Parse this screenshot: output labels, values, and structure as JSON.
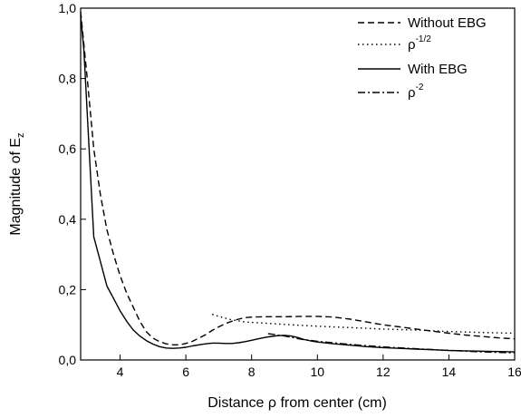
{
  "chart_data": {
    "type": "line",
    "title": "",
    "xlabel": "Distance ρ from center (cm)",
    "ylabel_main": "Magnitude of E",
    "ylabel_sub": "z",
    "xlim": [
      2.8,
      16
    ],
    "ylim": [
      0,
      1.0
    ],
    "xticks": [
      4,
      6,
      8,
      10,
      12,
      14,
      16
    ],
    "xtick_labels": [
      "4",
      "6",
      "8",
      "10",
      "12",
      "14",
      "16"
    ],
    "yticks": [
      0,
      0.2,
      0.4,
      0.6,
      0.8,
      1.0
    ],
    "ytick_labels": [
      "0,0",
      "0,2",
      "0,4",
      "0,6",
      "0,8",
      "1,0"
    ],
    "grid": false,
    "legend_position": "top-right",
    "series": [
      {
        "name": "Without EBG",
        "label_main": "Without EBG",
        "label_sup": "",
        "dash": "dashed",
        "x": [
          2.8,
          3.0,
          3.2,
          3.4,
          3.6,
          3.8,
          4.0,
          4.2,
          4.4,
          4.6,
          4.8,
          5.0,
          5.2,
          5.4,
          5.6,
          5.8,
          6.0,
          6.2,
          6.4,
          6.6,
          6.8,
          7.0,
          7.2,
          7.4,
          7.6,
          7.8,
          8.0,
          8.5,
          9.0,
          9.5,
          10.0,
          10.5,
          11.0,
          11.5,
          12.0,
          12.5,
          13.0,
          13.5,
          14.0,
          14.5,
          15.0,
          15.5,
          16.0
        ],
        "y": [
          0.99,
          0.8,
          0.6,
          0.47,
          0.37,
          0.3,
          0.24,
          0.19,
          0.15,
          0.11,
          0.08,
          0.062,
          0.052,
          0.046,
          0.043,
          0.043,
          0.047,
          0.053,
          0.062,
          0.072,
          0.084,
          0.094,
          0.103,
          0.11,
          0.116,
          0.12,
          0.122,
          0.123,
          0.123,
          0.124,
          0.124,
          0.122,
          0.116,
          0.108,
          0.1,
          0.094,
          0.088,
          0.082,
          0.076,
          0.071,
          0.067,
          0.063,
          0.06
        ]
      },
      {
        "name": "ρ^-1/2",
        "label_main": "ρ",
        "label_sup": "-1/2",
        "dash": "dotted",
        "x": [
          6.8,
          7.0,
          7.4,
          7.8,
          8.5,
          9.0,
          10.0,
          11.0,
          12.0,
          13.0,
          14.0,
          15.0,
          16.0
        ],
        "y": [
          0.13,
          0.124,
          0.114,
          0.108,
          0.104,
          0.101,
          0.096,
          0.092,
          0.088,
          0.085,
          0.081,
          0.078,
          0.076
        ]
      },
      {
        "name": "With EBG",
        "label_main": "With EBG",
        "label_sup": "",
        "dash": "solid",
        "x": [
          2.8,
          2.9,
          3.0,
          3.2,
          3.4,
          3.6,
          3.8,
          4.0,
          4.2,
          4.4,
          4.6,
          4.8,
          5.0,
          5.2,
          5.4,
          5.6,
          5.8,
          6.0,
          6.2,
          6.4,
          6.6,
          6.8,
          7.0,
          7.2,
          7.4,
          7.6,
          7.8,
          8.0,
          8.2,
          8.4,
          8.6,
          8.8,
          9.0,
          9.2,
          9.4,
          9.6,
          9.8,
          10.0,
          10.5,
          11.0,
          11.5,
          12.0,
          12.5,
          13.0,
          13.5,
          14.0,
          14.5,
          15.0,
          15.5,
          16.0
        ],
        "y": [
          0.98,
          0.88,
          0.7,
          0.35,
          0.28,
          0.21,
          0.175,
          0.14,
          0.11,
          0.085,
          0.068,
          0.055,
          0.045,
          0.038,
          0.034,
          0.033,
          0.034,
          0.036,
          0.04,
          0.043,
          0.046,
          0.048,
          0.048,
          0.047,
          0.047,
          0.049,
          0.052,
          0.056,
          0.06,
          0.064,
          0.067,
          0.069,
          0.07,
          0.068,
          0.064,
          0.058,
          0.054,
          0.051,
          0.046,
          0.042,
          0.038,
          0.035,
          0.033,
          0.031,
          0.029,
          0.027,
          0.026,
          0.025,
          0.024,
          0.023
        ]
      },
      {
        "name": "ρ^-2",
        "label_main": "ρ",
        "label_sup": "-2",
        "dash": "dashdot",
        "x": [
          8.5,
          9.0,
          9.5,
          10.0,
          11.0,
          12.0,
          13.0,
          14.0,
          15.0,
          16.0
        ],
        "y": [
          0.075,
          0.068,
          0.059,
          0.053,
          0.044,
          0.037,
          0.032,
          0.027,
          0.023,
          0.02
        ]
      }
    ]
  }
}
